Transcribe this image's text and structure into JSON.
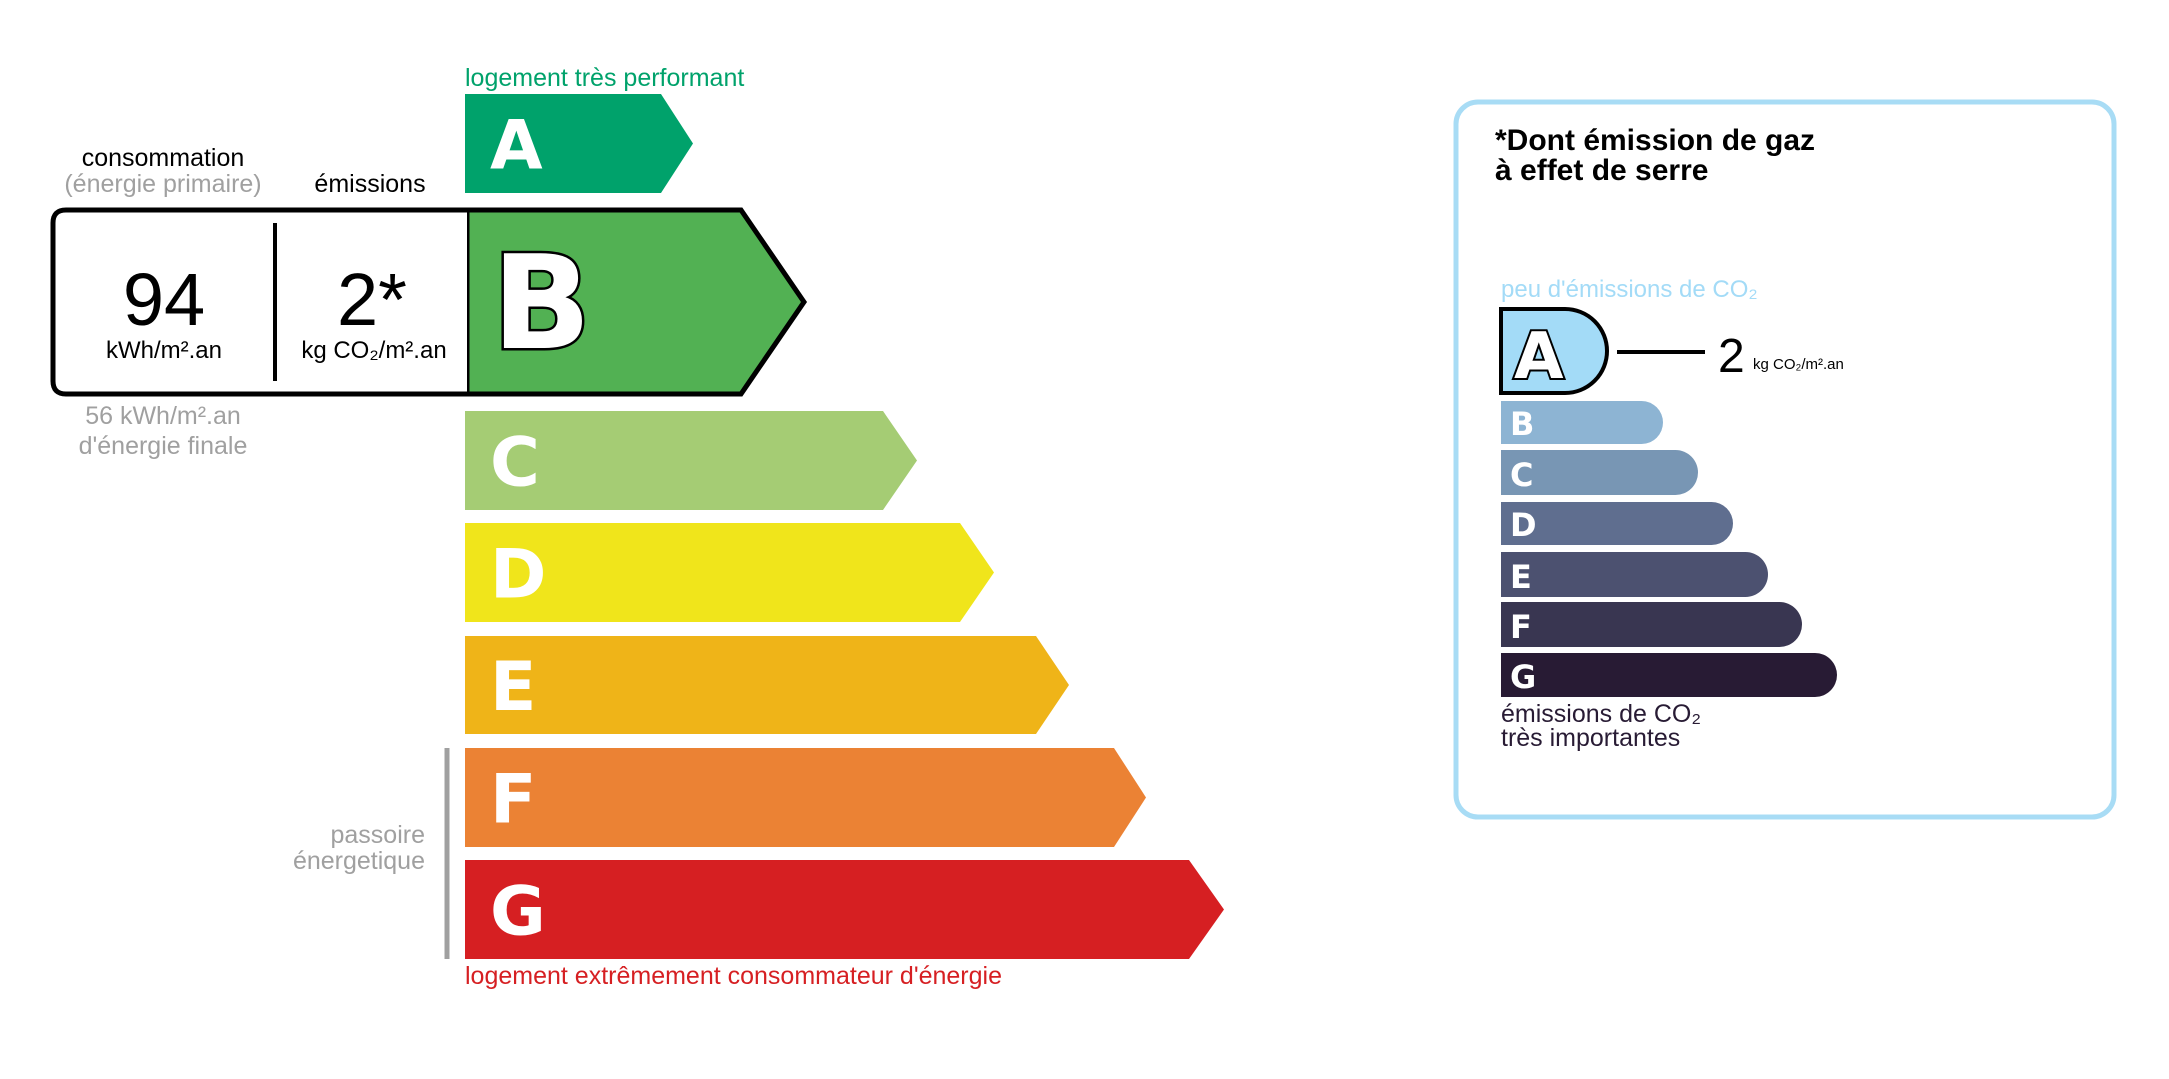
{
  "energy": {
    "top_label": "logement très performant",
    "bottom_label": "logement extrêmement consommateur d'énergie",
    "passoire_label": [
      "passoire",
      "énergetique"
    ],
    "classes": [
      {
        "letter": "A",
        "color": "#00a26b"
      },
      {
        "letter": "B",
        "color": "#52b153"
      },
      {
        "letter": "C",
        "color": "#a5cc74"
      },
      {
        "letter": "D",
        "color": "#f0e51b"
      },
      {
        "letter": "E",
        "color": "#efb418"
      },
      {
        "letter": "F",
        "color": "#eb8234"
      },
      {
        "letter": "G",
        "color": "#d61f22"
      }
    ],
    "current_class": "B",
    "top_label_color": "#00a26b",
    "bottom_label_color": "#d61f22"
  },
  "consumption": {
    "header": "consommation",
    "subheader": "(énergie primaire)",
    "value": "94",
    "unit": "kWh/m².an",
    "final_value": "56 kWh/m².an",
    "final_label": "d'énergie finale"
  },
  "emissions": {
    "header": "émissions",
    "value": "2*",
    "unit": "kg CO₂/m².an"
  },
  "ghg": {
    "title_line1": "*Dont émission de gaz",
    "title_line2": "à effet de serre",
    "top_label": "peu d'émissions de CO₂",
    "bottom_label_line1": "émissions de CO₂",
    "bottom_label_line2": "très importantes",
    "current_class": "A",
    "value": "2",
    "unit": "kg CO₂/m².an",
    "border_color": "#a8dcf5",
    "classes": [
      {
        "letter": "A",
        "color": "#a3dbf7"
      },
      {
        "letter": "B",
        "color": "#8db4d3"
      },
      {
        "letter": "C",
        "color": "#7896b4"
      },
      {
        "letter": "D",
        "color": "#5f6e8f"
      },
      {
        "letter": "E",
        "color": "#4c5170"
      },
      {
        "letter": "F",
        "color": "#393651"
      },
      {
        "letter": "G",
        "color": "#281b34"
      }
    ]
  }
}
